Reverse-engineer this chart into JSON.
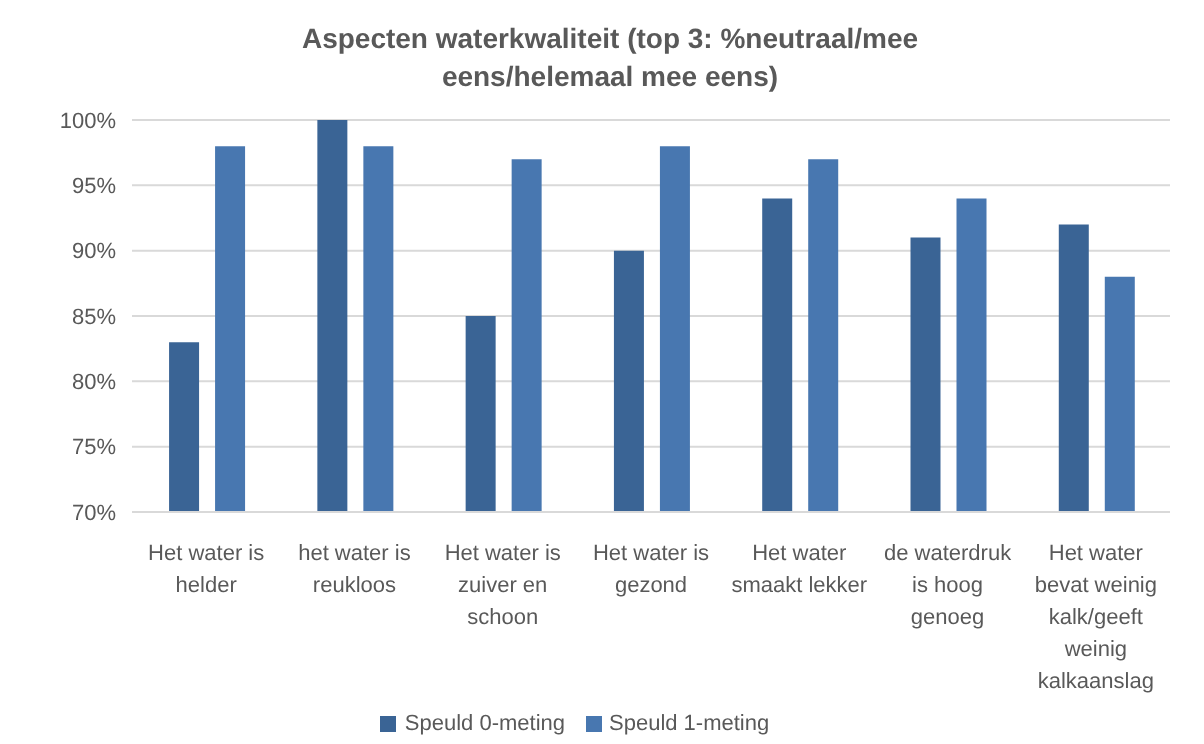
{
  "chart_data": {
    "type": "bar",
    "title": "Aspecten waterkwaliteit (top 3: %neutraal/mee eens/helemaal mee eens)",
    "categories": [
      "Het water is helder",
      "het water is reukloos",
      "Het water is zuiver en schoon",
      "Het water is gezond",
      "Het water smaakt lekker",
      "de waterdruk is hoog genoeg",
      "Het water bevat weinig kalk/geeft weinig kalkaanslag"
    ],
    "series": [
      {
        "name": "Speuld 0-meting",
        "color": "#3a6495",
        "values": [
          83,
          100,
          85,
          90,
          94,
          91,
          92
        ]
      },
      {
        "name": "Speuld 1-meting",
        "color": "#4877b0",
        "values": [
          98,
          98,
          97,
          98,
          97,
          94,
          88
        ]
      }
    ],
    "ylim": [
      70,
      100
    ],
    "yticks": [
      {
        "value": 70,
        "label": "70%"
      },
      {
        "value": 75,
        "label": "75%"
      },
      {
        "value": 80,
        "label": "80%"
      },
      {
        "value": 85,
        "label": "85%"
      },
      {
        "value": 90,
        "label": "90%"
      },
      {
        "value": 95,
        "label": "95%"
      },
      {
        "value": 100,
        "label": "100%"
      }
    ],
    "grid": "y",
    "legend": "bottom"
  }
}
